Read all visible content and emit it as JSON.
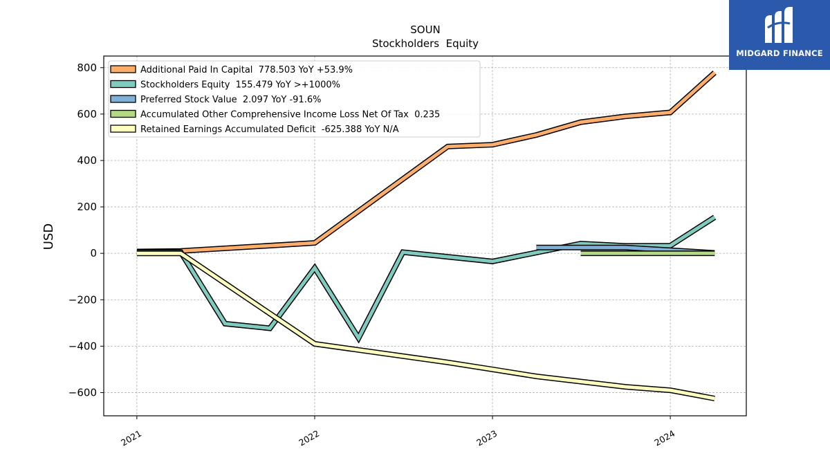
{
  "brand": {
    "name": "MIDGARD FINANCE",
    "logo_icon": "midgard-m-logo",
    "background": "#2b5aad"
  },
  "chart_data": {
    "type": "line",
    "title": "SOUN",
    "subtitle": "Stockholders  Equity",
    "xlabel": "",
    "ylabel": "USD",
    "x_ticks": [
      "2021",
      "2022",
      "2023",
      "2024"
    ],
    "y_ticks": [
      800,
      600,
      400,
      200,
      0,
      -200,
      -400,
      -600
    ],
    "y_tick_labels": [
      "800",
      "600",
      "400",
      "200",
      "0",
      "−200",
      "−400",
      "−600"
    ],
    "xlim": [
      "2020-10-25",
      "2024-06-05"
    ],
    "ylim": [
      -700,
      850
    ],
    "grid": true,
    "legend_position": "top-left",
    "series": [
      {
        "name": "Additional Paid In Capital  778.503 YoY +53.9%",
        "color": "#fdae6b",
        "points": [
          [
            "2021-01-01",
            8
          ],
          [
            "2021-04-01",
            10
          ],
          [
            "2022-01-01",
            45
          ],
          [
            "2022-10-01",
            460
          ],
          [
            "2023-01-01",
            468
          ],
          [
            "2023-04-01",
            510
          ],
          [
            "2023-07-01",
            565
          ],
          [
            "2023-10-01",
            590
          ],
          [
            "2024-01-01",
            607
          ],
          [
            "2024-04-01",
            778.503
          ]
        ]
      },
      {
        "name": "Stockholders Equity  155.479 YoY >+1000%",
        "color": "#80cbc0",
        "points": [
          [
            "2021-01-01",
            5
          ],
          [
            "2021-04-01",
            5
          ],
          [
            "2021-07-01",
            -303
          ],
          [
            "2021-10-01",
            -323
          ],
          [
            "2022-01-01",
            -63
          ],
          [
            "2022-04-01",
            -365
          ],
          [
            "2022-07-01",
            5
          ],
          [
            "2023-01-01",
            -35
          ],
          [
            "2023-07-01",
            42
          ],
          [
            "2023-10-01",
            32
          ],
          [
            "2024-01-01",
            33
          ],
          [
            "2024-04-01",
            155.479
          ]
        ]
      },
      {
        "name": "Preferred Stock Value  2.097 YoY -91.6%",
        "color": "#7fb1d8",
        "points": [
          [
            "2023-04-01",
            25
          ],
          [
            "2023-10-01",
            25
          ],
          [
            "2024-04-01",
            2.097
          ]
        ]
      },
      {
        "name": "Accumulated Other Comprehensive Income Loss Net Of Tax  0.235",
        "color": "#b3d985",
        "points": [
          [
            "2023-07-01",
            0.235
          ],
          [
            "2024-04-01",
            0.235
          ]
        ]
      },
      {
        "name": "Retained Earnings Accumulated Deficit  -625.388 YoY N/A",
        "color": "#ffffbf",
        "points": [
          [
            "2021-01-01",
            0
          ],
          [
            "2021-04-01",
            0
          ],
          [
            "2022-01-01",
            -390
          ],
          [
            "2022-10-01",
            -470
          ],
          [
            "2023-01-01",
            -500
          ],
          [
            "2023-04-01",
            -530
          ],
          [
            "2023-10-01",
            -575
          ],
          [
            "2024-01-01",
            -590
          ],
          [
            "2024-04-01",
            -625.388
          ]
        ]
      }
    ]
  }
}
